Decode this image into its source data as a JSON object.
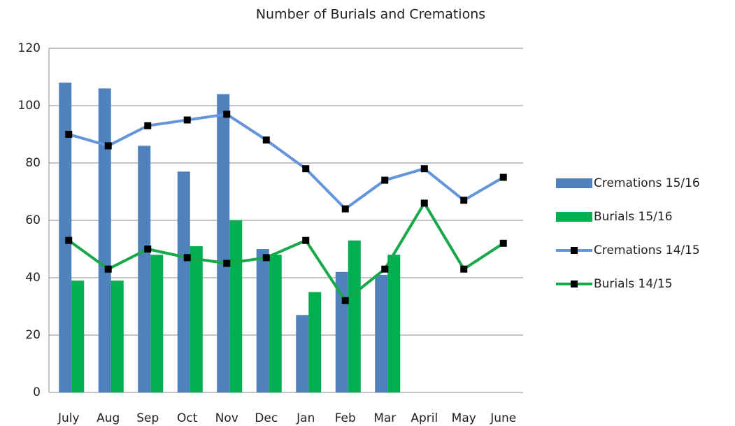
{
  "chart_data": {
    "type": "combo",
    "title": "Number of Burials and Cremations",
    "categories": [
      "July",
      "Aug",
      "Sep",
      "Oct",
      "Nov",
      "Dec",
      "Jan",
      "Feb",
      "Mar",
      "April",
      "May",
      "June"
    ],
    "series": [
      {
        "name": "Cremations 15/16",
        "type": "bar",
        "color": "#4f81bd",
        "values": [
          108,
          106,
          86,
          77,
          104,
          50,
          27,
          42,
          41,
          null,
          null,
          null
        ]
      },
      {
        "name": "Burials 15/16",
        "type": "bar",
        "color": "#00b050",
        "values": [
          39,
          39,
          48,
          51,
          60,
          48,
          35,
          53,
          48,
          null,
          null,
          null
        ]
      },
      {
        "name": "Cremations 14/15",
        "type": "line",
        "color": "#6495db",
        "marker_color": "#000000",
        "values": [
          90,
          86,
          93,
          95,
          97,
          88,
          78,
          64,
          74,
          78,
          67,
          75
        ]
      },
      {
        "name": "Burials 14/15",
        "type": "line",
        "color": "#17a84a",
        "marker_color": "#000000",
        "values": [
          53,
          43,
          50,
          47,
          45,
          47,
          53,
          32,
          43,
          66,
          43,
          52
        ]
      }
    ],
    "ylim": [
      0,
      120
    ],
    "yticks": [
      0,
      20,
      40,
      60,
      80,
      100,
      120
    ],
    "grid": true,
    "legend": "right"
  }
}
